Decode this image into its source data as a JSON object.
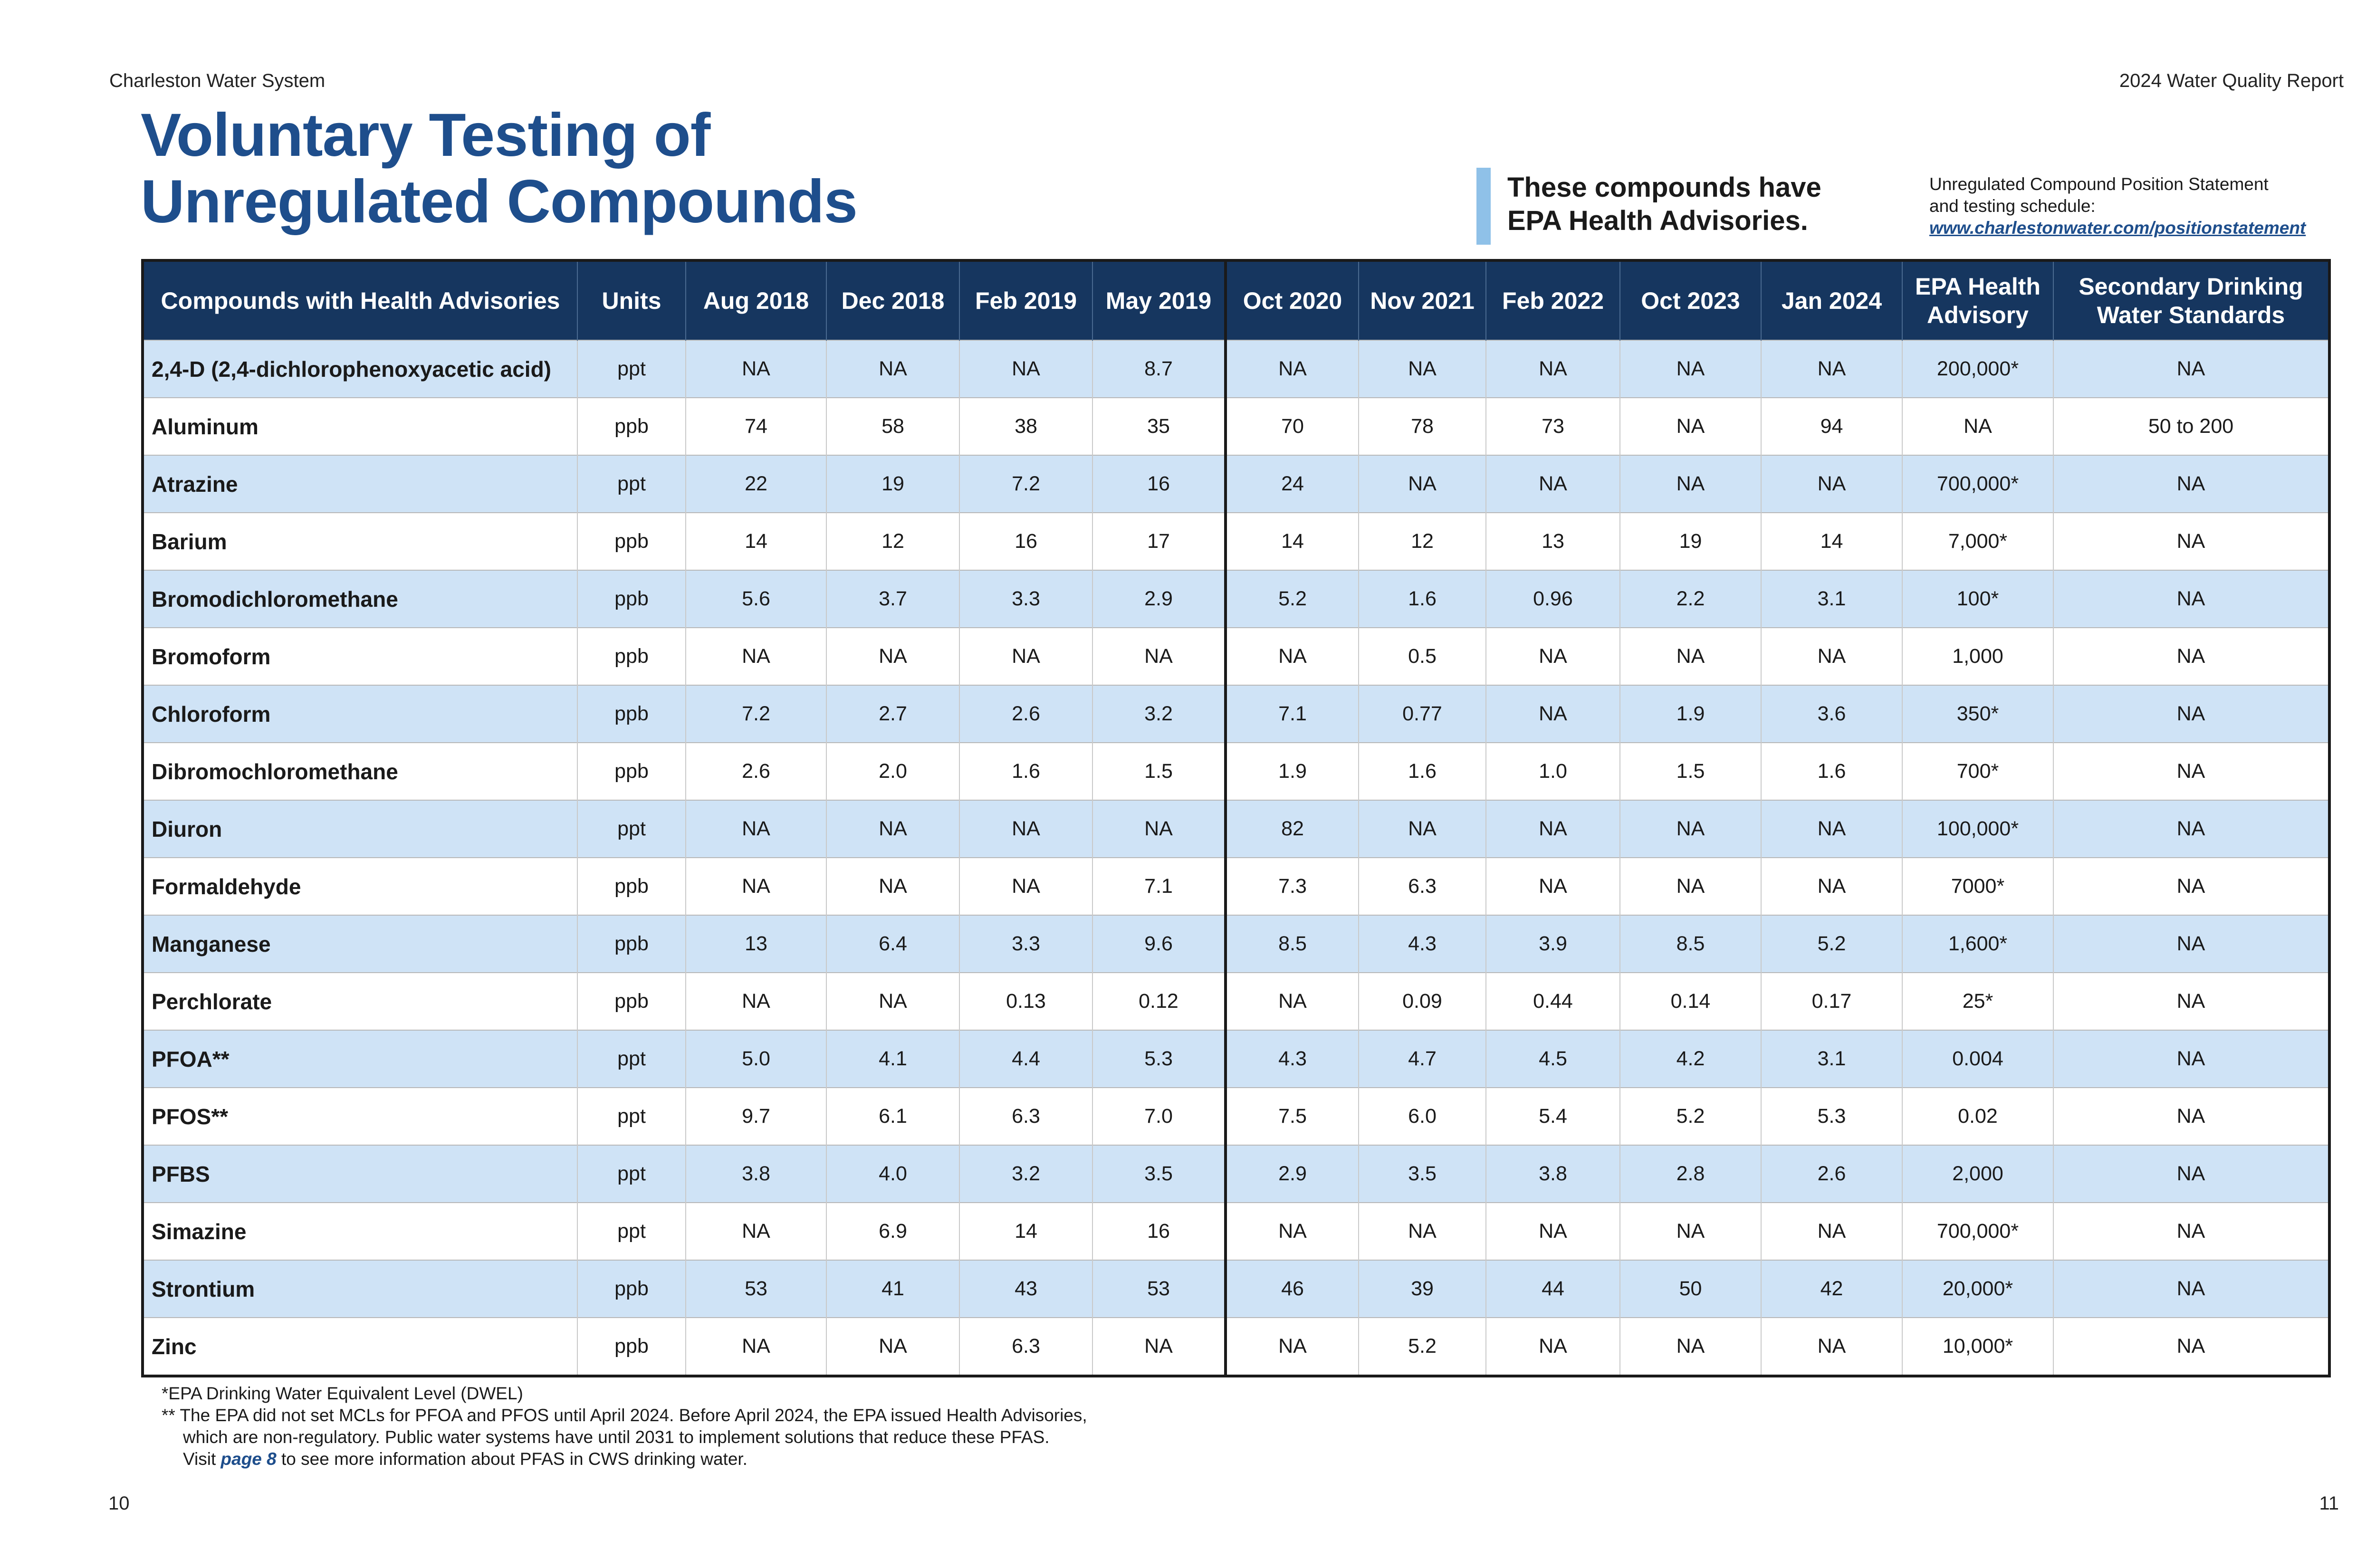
{
  "header": {
    "org": "Charleston Water System",
    "report": "2024 Water Quality Report"
  },
  "title": {
    "line1": "Voluntary Testing of",
    "line2": "Unregulated Compounds"
  },
  "advisory": {
    "line1": "These compounds have",
    "line2": "EPA Health Advisories."
  },
  "position": {
    "line1": "Unregulated Compound Position Statement",
    "line2": "and testing schedule:",
    "link": "www.charlestonwater.com/positionstatement"
  },
  "table": {
    "headers": [
      "Compounds with Health Advisories",
      "Units",
      "Aug 2018",
      "Dec 2018",
      "Feb 2019",
      "May 2019",
      "Oct 2020",
      "Nov 2021",
      "Feb 2022",
      "Oct 2023",
      "Jan 2024",
      "EPA Health Advisory",
      "Secondary Drinking Water Standards"
    ],
    "rows": [
      [
        "2,4-D (2,4-dichlorophenoxyacetic acid)",
        "ppt",
        "NA",
        "NA",
        "NA",
        "8.7",
        "NA",
        "NA",
        "NA",
        "NA",
        "NA",
        "200,000*",
        "NA"
      ],
      [
        "Aluminum",
        "ppb",
        "74",
        "58",
        "38",
        "35",
        "70",
        "78",
        "73",
        "NA",
        "94",
        "NA",
        "50 to 200"
      ],
      [
        "Atrazine",
        "ppt",
        "22",
        "19",
        "7.2",
        "16",
        "24",
        "NA",
        "NA",
        "NA",
        "NA",
        "700,000*",
        "NA"
      ],
      [
        "Barium",
        "ppb",
        "14",
        "12",
        "16",
        "17",
        "14",
        "12",
        "13",
        "19",
        "14",
        "7,000*",
        "NA"
      ],
      [
        "Bromodichloromethane",
        "ppb",
        "5.6",
        "3.7",
        "3.3",
        "2.9",
        "5.2",
        "1.6",
        "0.96",
        "2.2",
        "3.1",
        "100*",
        "NA"
      ],
      [
        "Bromoform",
        "ppb",
        "NA",
        "NA",
        "NA",
        "NA",
        "NA",
        "0.5",
        "NA",
        "NA",
        "NA",
        "1,000",
        "NA"
      ],
      [
        "Chloroform",
        "ppb",
        "7.2",
        "2.7",
        "2.6",
        "3.2",
        "7.1",
        "0.77",
        "NA",
        "1.9",
        "3.6",
        "350*",
        "NA"
      ],
      [
        "Dibromochloromethane",
        "ppb",
        "2.6",
        "2.0",
        "1.6",
        "1.5",
        "1.9",
        "1.6",
        "1.0",
        "1.5",
        "1.6",
        "700*",
        "NA"
      ],
      [
        "Diuron",
        "ppt",
        "NA",
        "NA",
        "NA",
        "NA",
        "82",
        "NA",
        "NA",
        "NA",
        "NA",
        "100,000*",
        "NA"
      ],
      [
        "Formaldehyde",
        "ppb",
        "NA",
        "NA",
        "NA",
        "7.1",
        "7.3",
        "6.3",
        "NA",
        "NA",
        "NA",
        "7000*",
        "NA"
      ],
      [
        "Manganese",
        "ppb",
        "13",
        "6.4",
        "3.3",
        "9.6",
        "8.5",
        "4.3",
        "3.9",
        "8.5",
        "5.2",
        "1,600*",
        "NA"
      ],
      [
        "Perchlorate",
        "ppb",
        "NA",
        "NA",
        "0.13",
        "0.12",
        "NA",
        "0.09",
        "0.44",
        "0.14",
        "0.17",
        "25*",
        "NA"
      ],
      [
        "PFOA**",
        "ppt",
        "5.0",
        "4.1",
        "4.4",
        "5.3",
        "4.3",
        "4.7",
        "4.5",
        "4.2",
        "3.1",
        "0.004",
        "NA"
      ],
      [
        "PFOS**",
        "ppt",
        "9.7",
        "6.1",
        "6.3",
        "7.0",
        "7.5",
        "6.0",
        "5.4",
        "5.2",
        "5.3",
        "0.02",
        "NA"
      ],
      [
        "PFBS",
        "ppt",
        "3.8",
        "4.0",
        "3.2",
        "3.5",
        "2.9",
        "3.5",
        "3.8",
        "2.8",
        "2.6",
        "2,000",
        "NA"
      ],
      [
        "Simazine",
        "ppt",
        "NA",
        "6.9",
        "14",
        "16",
        "NA",
        "NA",
        "NA",
        "NA",
        "NA",
        "700,000*",
        "NA"
      ],
      [
        "Strontium",
        "ppb",
        "53",
        "41",
        "43",
        "53",
        "46",
        "39",
        "44",
        "50",
        "42",
        "20,000*",
        "NA"
      ],
      [
        "Zinc",
        "ppb",
        "NA",
        "NA",
        "6.3",
        "NA",
        "NA",
        "5.2",
        "NA",
        "NA",
        "NA",
        "10,000*",
        "NA"
      ]
    ]
  },
  "footnotes": {
    "note1": "*EPA Drinking Water Equivalent Level (DWEL)",
    "note2": "** The EPA did not set MCLs for PFOA and PFOS until April 2024. Before April 2024, the EPA issued Health Advisories,",
    "note3": "which are non-regulatory. Public water systems have until 2031 to implement solutions that reduce these PFAS.",
    "note4_pre": "Visit ",
    "note4_link": "page 8",
    "note4_post": " to see more information about PFAS in CWS drinking water."
  },
  "pages": {
    "left": "10",
    "right": "11"
  }
}
